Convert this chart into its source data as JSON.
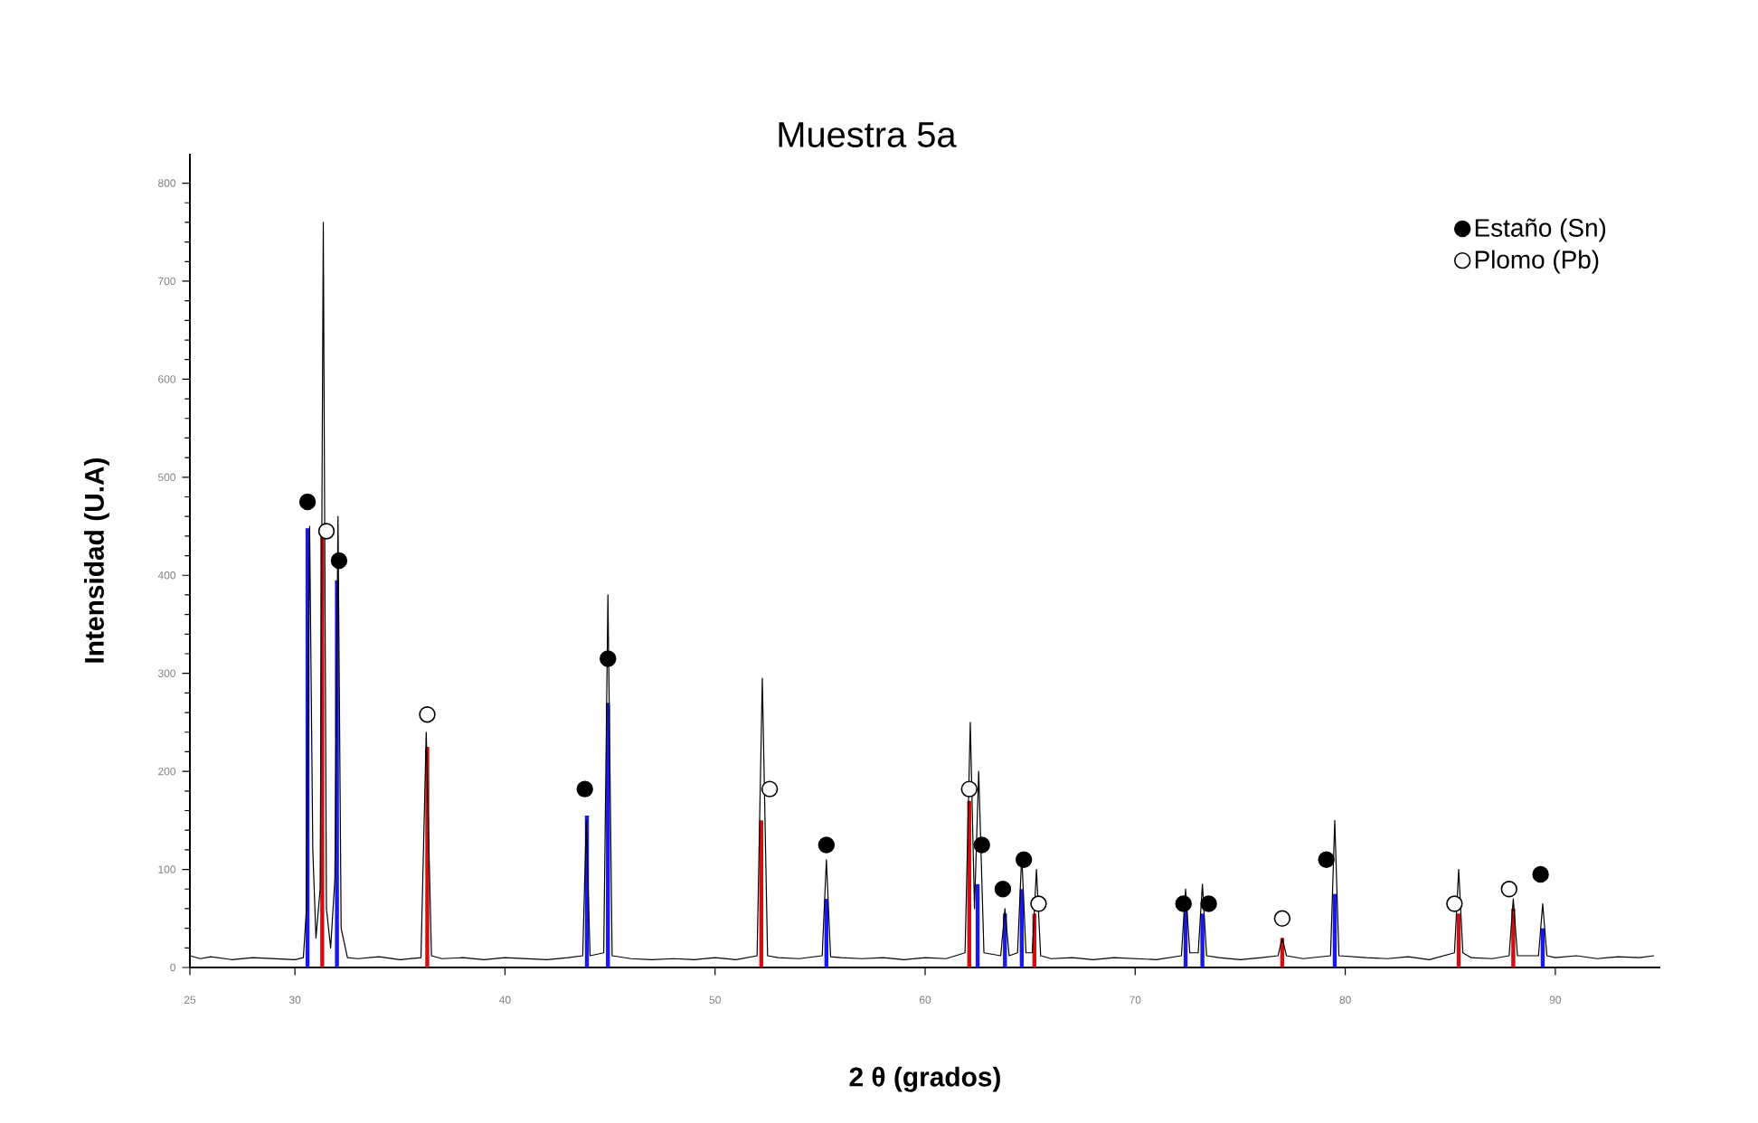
{
  "chart_data": {
    "type": "line",
    "title": "Muestra 5a",
    "xlabel": "2 θ (grados)",
    "ylabel": "Intensidad (U.A)",
    "xlim": [
      25,
      95
    ],
    "ylim": [
      0,
      830
    ],
    "xticks": [
      25,
      30,
      40,
      50,
      60,
      70,
      80,
      90
    ],
    "yticks": [
      0,
      100,
      200,
      300,
      400,
      500,
      600,
      700,
      800
    ],
    "legend": "top right",
    "series": [
      {
        "type": "bar",
        "color": "#cc1111",
        "x": [
          31.3,
          36.3,
          52.2,
          62.1,
          65.2,
          77.0,
          85.4,
          88.0
        ],
        "values": [
          440,
          225,
          150,
          170,
          55,
          30,
          55,
          60
        ]
      },
      {
        "type": "bar",
        "color": "#1a1ae6",
        "x": [
          30.6,
          32.0,
          43.9,
          44.9,
          55.3,
          62.5,
          63.8,
          64.6,
          72.4,
          73.2,
          79.5,
          89.4
        ],
        "values": [
          448,
          395,
          155,
          270,
          70,
          85,
          55,
          80,
          60,
          55,
          75,
          40
        ]
      },
      {
        "color": "#000000",
        "x": [
          25,
          25.5,
          26,
          27,
          28,
          29,
          30,
          30.4,
          30.55,
          30.7,
          30.85,
          31.0,
          31.2,
          31.35,
          31.5,
          31.7,
          31.9,
          32.05,
          32.2,
          32.5,
          33,
          34,
          35,
          36.0,
          36.25,
          36.5,
          37,
          38,
          39,
          40,
          41,
          42,
          43,
          43.7,
          43.87,
          44.05,
          44.7,
          44.9,
          45.1,
          46,
          47,
          48,
          49,
          50,
          51,
          52.0,
          52.25,
          52.5,
          53,
          54,
          55.1,
          55.3,
          55.5,
          56,
          57,
          58,
          59,
          60,
          61,
          61.9,
          62.15,
          62.35,
          62.55,
          62.8,
          63.6,
          63.8,
          64.0,
          64.4,
          64.6,
          64.8,
          65.1,
          65.3,
          65.5,
          66,
          67,
          68,
          69,
          70,
          71,
          72.2,
          72.4,
          72.6,
          73.0,
          73.2,
          73.4,
          74,
          75,
          76,
          76.8,
          77.0,
          77.2,
          78,
          79.3,
          79.5,
          79.7,
          81,
          82,
          83,
          84,
          85.2,
          85.4,
          85.6,
          86,
          87,
          87.8,
          88.0,
          88.2,
          89.2,
          89.4,
          89.6,
          90,
          91,
          92,
          93,
          94,
          94.7
        ],
        "values": [
          12,
          9,
          11,
          8,
          10,
          9,
          8,
          10,
          60,
          450,
          120,
          30,
          80,
          760,
          60,
          20,
          90,
          460,
          40,
          10,
          9,
          11,
          8,
          10,
          240,
          12,
          9,
          10,
          8,
          10,
          9,
          8,
          10,
          12,
          150,
          12,
          15,
          380,
          12,
          9,
          8,
          9,
          8,
          10,
          8,
          12,
          295,
          12,
          10,
          9,
          12,
          110,
          11,
          10,
          9,
          10,
          8,
          10,
          9,
          15,
          250,
          60,
          200,
          15,
          12,
          60,
          12,
          15,
          115,
          15,
          15,
          100,
          12,
          9,
          10,
          8,
          10,
          9,
          8,
          12,
          80,
          15,
          15,
          85,
          12,
          10,
          8,
          10,
          12,
          30,
          12,
          9,
          12,
          150,
          12,
          10,
          9,
          11,
          8,
          15,
          100,
          15,
          10,
          9,
          12,
          70,
          12,
          12,
          65,
          12,
          10,
          12,
          9,
          11,
          10,
          12
        ]
      },
      {
        "type": "scatter",
        "name": "Estaño (Sn)",
        "color": "#000000",
        "marker": "circle",
        "x": [
          30.6,
          32.1,
          43.8,
          44.9,
          55.3,
          62.7,
          63.7,
          64.7,
          72.3,
          73.5,
          79.1,
          89.3
        ],
        "values": [
          475,
          415,
          182,
          315,
          125,
          125,
          80,
          110,
          65,
          65,
          110,
          95
        ]
      },
      {
        "type": "scatter",
        "name": "Plomo (Pb)",
        "color": "#ffffff",
        "marker": "circle",
        "x": [
          31.5,
          36.3,
          52.6,
          62.1,
          65.4,
          77.0,
          85.2,
          87.8
        ],
        "values": [
          445,
          258,
          182,
          182,
          65,
          50,
          65,
          80
        ]
      }
    ]
  }
}
